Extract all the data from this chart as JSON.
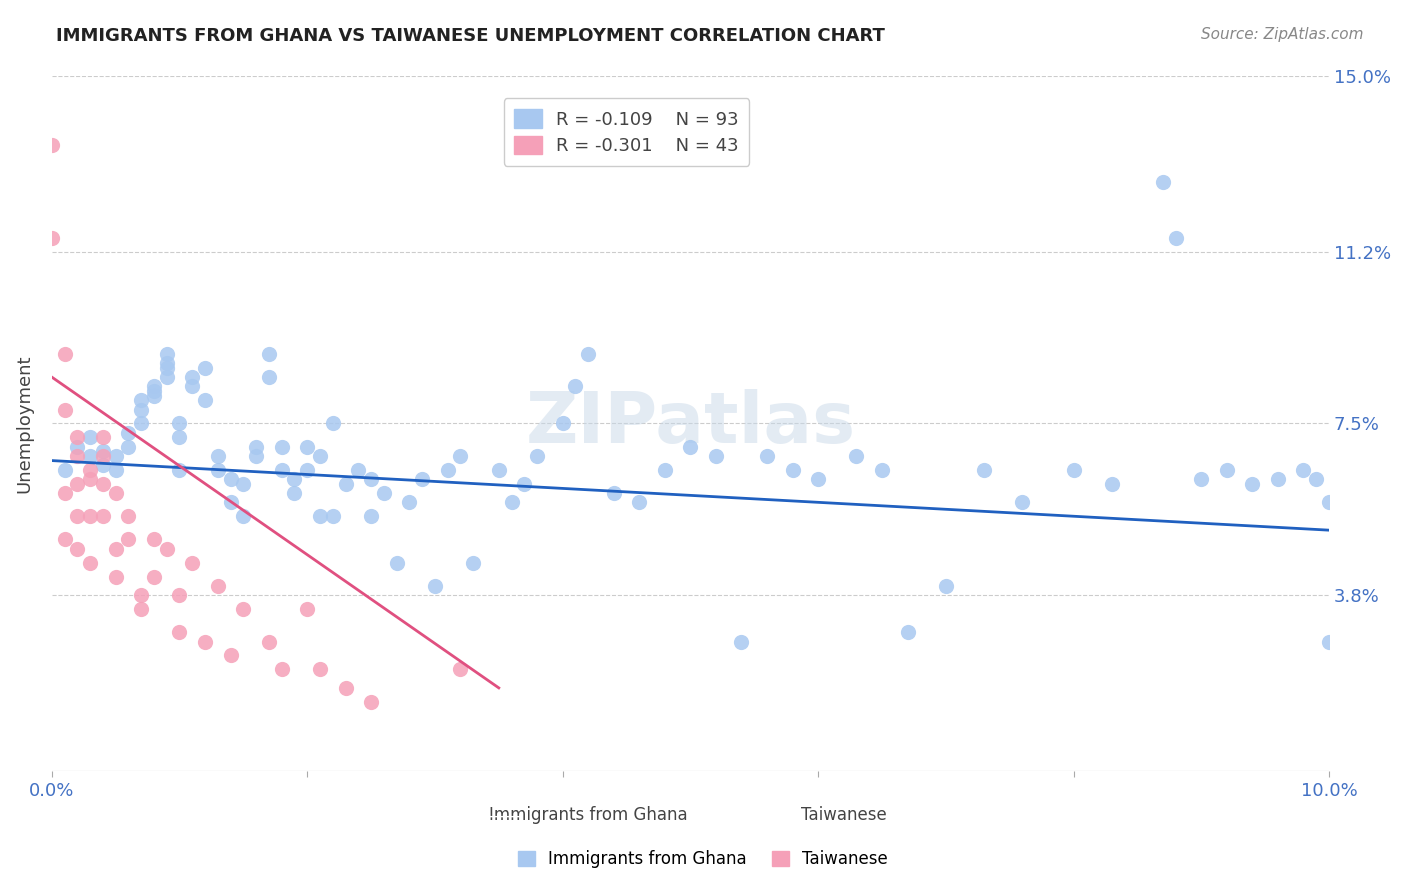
{
  "title": "IMMIGRANTS FROM GHANA VS TAIWANESE UNEMPLOYMENT CORRELATION CHART",
  "source": "Source: ZipAtlas.com",
  "xlabel_bottom": "",
  "ylabel": "Unemployment",
  "x_min": 0.0,
  "x_max": 0.1,
  "y_min": 0.0,
  "y_max": 0.15,
  "yticks": [
    0.038,
    0.075,
    0.112,
    0.15
  ],
  "ytick_labels": [
    "3.8%",
    "7.5%",
    "11.2%",
    "15.0%"
  ],
  "xticks": [
    0.0,
    0.02,
    0.04,
    0.06,
    0.08,
    0.1
  ],
  "xtick_labels": [
    "0.0%",
    "",
    "",
    "",
    "",
    "10.0%"
  ],
  "legend_blue_r": "-0.109",
  "legend_blue_n": "93",
  "legend_pink_r": "-0.301",
  "legend_pink_n": "43",
  "legend_blue_label": "Immigrants from Ghana",
  "legend_pink_label": "Taiwanese",
  "blue_color": "#a8c8f0",
  "pink_color": "#f5a0b8",
  "blue_line_color": "#2060c0",
  "pink_line_color": "#e05080",
  "watermark": "ZIPatlas",
  "blue_scatter_x": [
    0.001,
    0.002,
    0.003,
    0.003,
    0.004,
    0.004,
    0.005,
    0.005,
    0.006,
    0.006,
    0.007,
    0.007,
    0.007,
    0.008,
    0.008,
    0.008,
    0.009,
    0.009,
    0.009,
    0.009,
    0.01,
    0.01,
    0.01,
    0.011,
    0.011,
    0.012,
    0.012,
    0.013,
    0.013,
    0.014,
    0.014,
    0.015,
    0.015,
    0.016,
    0.016,
    0.017,
    0.017,
    0.018,
    0.018,
    0.019,
    0.019,
    0.02,
    0.02,
    0.021,
    0.021,
    0.022,
    0.022,
    0.023,
    0.024,
    0.025,
    0.025,
    0.026,
    0.027,
    0.028,
    0.029,
    0.03,
    0.031,
    0.032,
    0.033,
    0.035,
    0.036,
    0.037,
    0.038,
    0.04,
    0.041,
    0.042,
    0.044,
    0.046,
    0.048,
    0.05,
    0.052,
    0.054,
    0.056,
    0.058,
    0.06,
    0.063,
    0.065,
    0.067,
    0.07,
    0.073,
    0.076,
    0.08,
    0.083,
    0.087,
    0.088,
    0.09,
    0.092,
    0.094,
    0.096,
    0.098,
    0.099,
    0.1,
    0.1
  ],
  "blue_scatter_y": [
    0.065,
    0.07,
    0.072,
    0.068,
    0.066,
    0.069,
    0.065,
    0.068,
    0.073,
    0.07,
    0.075,
    0.078,
    0.08,
    0.082,
    0.083,
    0.081,
    0.085,
    0.088,
    0.09,
    0.087,
    0.072,
    0.075,
    0.065,
    0.085,
    0.083,
    0.08,
    0.087,
    0.065,
    0.068,
    0.063,
    0.058,
    0.062,
    0.055,
    0.07,
    0.068,
    0.085,
    0.09,
    0.07,
    0.065,
    0.06,
    0.063,
    0.065,
    0.07,
    0.068,
    0.055,
    0.075,
    0.055,
    0.062,
    0.065,
    0.063,
    0.055,
    0.06,
    0.045,
    0.058,
    0.063,
    0.04,
    0.065,
    0.068,
    0.045,
    0.065,
    0.058,
    0.062,
    0.068,
    0.075,
    0.083,
    0.09,
    0.06,
    0.058,
    0.065,
    0.07,
    0.068,
    0.028,
    0.068,
    0.065,
    0.063,
    0.068,
    0.065,
    0.03,
    0.04,
    0.065,
    0.058,
    0.065,
    0.062,
    0.127,
    0.115,
    0.063,
    0.065,
    0.062,
    0.063,
    0.065,
    0.063,
    0.058,
    0.028
  ],
  "pink_scatter_x": [
    0.0,
    0.0,
    0.001,
    0.001,
    0.001,
    0.001,
    0.002,
    0.002,
    0.002,
    0.002,
    0.002,
    0.003,
    0.003,
    0.003,
    0.003,
    0.004,
    0.004,
    0.004,
    0.004,
    0.005,
    0.005,
    0.005,
    0.006,
    0.006,
    0.007,
    0.007,
    0.008,
    0.008,
    0.009,
    0.01,
    0.01,
    0.011,
    0.012,
    0.013,
    0.014,
    0.015,
    0.017,
    0.018,
    0.02,
    0.021,
    0.023,
    0.025,
    0.032
  ],
  "pink_scatter_y": [
    0.135,
    0.115,
    0.09,
    0.078,
    0.06,
    0.05,
    0.072,
    0.068,
    0.062,
    0.055,
    0.048,
    0.065,
    0.063,
    0.055,
    0.045,
    0.072,
    0.068,
    0.062,
    0.055,
    0.06,
    0.048,
    0.042,
    0.05,
    0.055,
    0.038,
    0.035,
    0.05,
    0.042,
    0.048,
    0.038,
    0.03,
    0.045,
    0.028,
    0.04,
    0.025,
    0.035,
    0.028,
    0.022,
    0.035,
    0.022,
    0.018,
    0.015,
    0.022
  ],
  "blue_trend_x": [
    0.0,
    0.1
  ],
  "blue_trend_y": [
    0.067,
    0.052
  ],
  "pink_trend_x": [
    0.0,
    0.035
  ],
  "pink_trend_y": [
    0.085,
    0.018
  ]
}
